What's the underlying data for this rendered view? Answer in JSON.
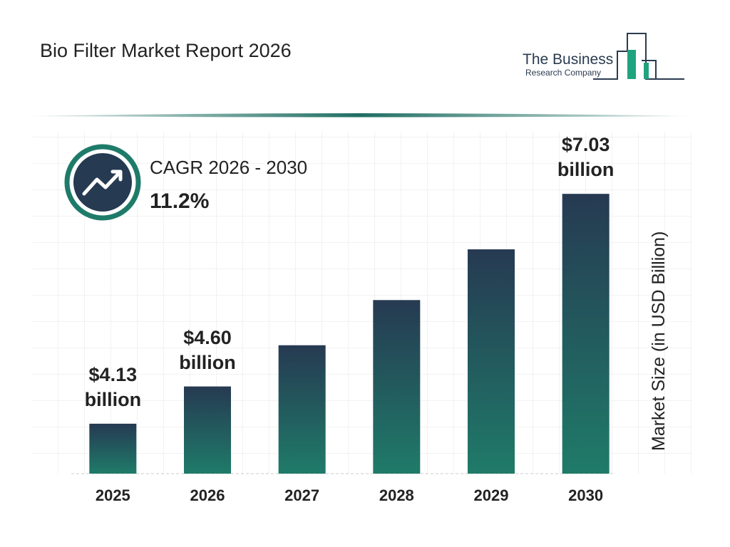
{
  "logo": {
    "line1": "The Business",
    "line2": "Research Company"
  },
  "chart_data": {
    "type": "bar",
    "title": "Bio Filter Market Report 2026",
    "cagr_label": "CAGR 2026 - 2030",
    "cagr_value": "11.2%",
    "y_label": "Market Size (in USD Billion)",
    "categories": [
      "2025",
      "2026",
      "2027",
      "2028",
      "2029",
      "2030"
    ],
    "values": [
      4.13,
      4.6,
      5.12,
      5.69,
      6.33,
      7.03
    ],
    "value_labels": [
      "$4.13 billion",
      "$4.60 billion",
      null,
      null,
      null,
      "$7.03 billion"
    ],
    "ylim": [
      3.5,
      7.4
    ]
  }
}
